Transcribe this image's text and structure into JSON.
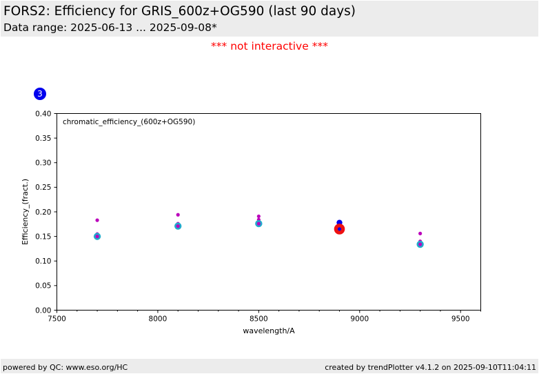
{
  "header": {
    "title": "FORS2: Efficiency for GRIS_600z+OG590 (last 90 days)",
    "subtitle": "Data range: 2025-06-13 ... 2025-09-08*"
  },
  "notice": "*** not interactive ***",
  "badge": "3",
  "footer": {
    "left": "powered by QC: www.eso.org/HC",
    "right": "created by trendPlotter v4.1.2 on 2025-09-10T11:04:11"
  },
  "colors": {
    "magenta": "#bb00bb",
    "cyan": "#22aacc",
    "blue": "#0000ee",
    "red": "#ee1111"
  },
  "chart_data": {
    "type": "scatter",
    "annotation": "chromatic_efficiency_(600z+OG590)",
    "xlabel": "wavelength/A",
    "ylabel": "Efficiency_(fract.)",
    "xlim": [
      7500,
      9600
    ],
    "ylim": [
      0.0,
      0.4
    ],
    "xticks": [
      7500,
      8000,
      8500,
      9000,
      9500
    ],
    "yticks": [
      0.0,
      0.05,
      0.1,
      0.15,
      0.2,
      0.25,
      0.3,
      0.35,
      0.4
    ],
    "grid": false,
    "series": [
      {
        "color": "magenta",
        "marker": "small",
        "x": [
          7700,
          8100,
          8500,
          9300
        ],
        "y": [
          0.183,
          0.194,
          0.191,
          0.156
        ]
      },
      {
        "color": "magenta",
        "marker": "small",
        "x": [
          7700,
          8100,
          8500,
          9300
        ],
        "y": [
          0.155,
          0.176,
          0.184,
          0.14
        ]
      },
      {
        "color": "cyan",
        "marker": "large",
        "x": [
          7700,
          8100,
          8500,
          9300
        ],
        "y": [
          0.15,
          0.171,
          0.176,
          0.134
        ]
      },
      {
        "color": "magenta",
        "marker": "small",
        "x": [
          7700,
          8100,
          8500,
          9300
        ],
        "y": [
          0.15,
          0.171,
          0.176,
          0.134
        ]
      },
      {
        "color": "blue",
        "marker": "medium",
        "x": [
          8900
        ],
        "y": [
          0.178
        ]
      },
      {
        "color": "red",
        "marker": "xlarge",
        "x": [
          8900
        ],
        "y": [
          0.165
        ]
      },
      {
        "color": "blue",
        "marker": "small",
        "x": [
          8900
        ],
        "y": [
          0.165
        ]
      }
    ]
  }
}
